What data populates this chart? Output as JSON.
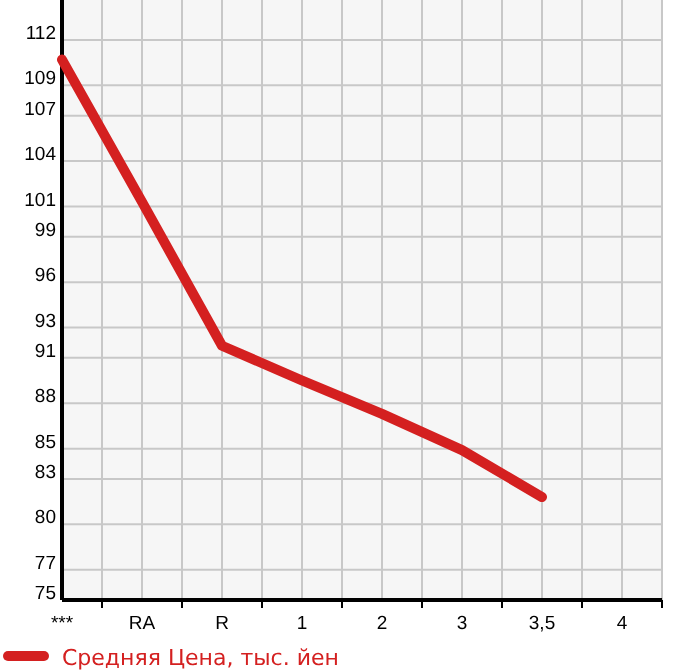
{
  "chart_data": {
    "type": "line",
    "categories": [
      "***",
      "RA",
      "R",
      "1",
      "2",
      "3",
      "3,5",
      "4"
    ],
    "series": [
      {
        "name": "Средняя Цена, тыс. йен",
        "color": "#d42020",
        "values": [
          110.7,
          101.3,
          91.8,
          89.5,
          87.3,
          84.9,
          81.8,
          null
        ]
      }
    ],
    "ylim": [
      75,
      114.64
    ],
    "yticks": [
      75,
      77,
      80,
      83,
      85,
      88,
      91,
      93,
      96,
      99,
      101,
      104,
      107,
      109,
      112
    ],
    "grid": true,
    "legend": "bottom",
    "marker": "none",
    "line_style": "solid"
  }
}
